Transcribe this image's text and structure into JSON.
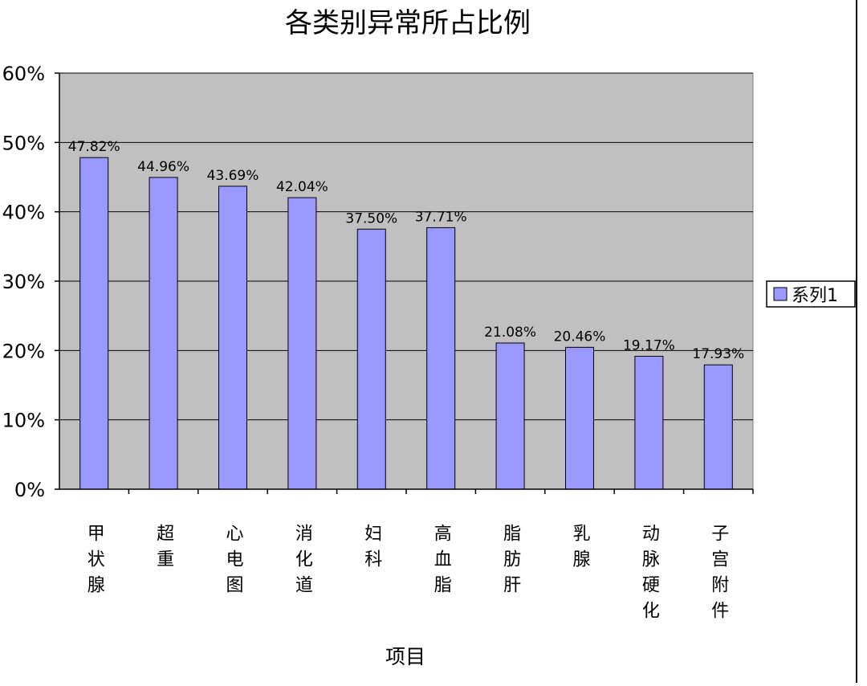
{
  "chart_data": {
    "type": "bar",
    "title": "各类别异常所占比例",
    "xlabel": "项目",
    "ylabel": "",
    "categories": [
      "甲状腺",
      "超重",
      "心电图",
      "消化道",
      "妇科",
      "高血脂",
      "脂肪肝",
      "乳腺",
      "动脉硬化",
      "子宫附件"
    ],
    "series": [
      {
        "name": "系列1",
        "values": [
          47.82,
          44.96,
          43.69,
          42.04,
          37.5,
          37.71,
          21.08,
          20.46,
          19.17,
          17.93
        ],
        "data_labels": [
          "47.82%",
          "44.96%",
          "43.69%",
          "42.04%",
          "37.50%",
          "37.71%",
          "21.08%",
          "20.46%",
          "19.17%",
          "17.93%"
        ]
      }
    ],
    "ylim": [
      0,
      60
    ],
    "yticks": [
      0,
      10,
      20,
      30,
      40,
      50,
      60
    ],
    "ytick_labels": [
      "0%",
      "10%",
      "20%",
      "30%",
      "40%",
      "50%",
      "60%"
    ],
    "grid": true,
    "legend_position": "right",
    "colors": {
      "bar": "#9999ff",
      "plot_background": "#c0c0c0",
      "gridline": "#000000"
    }
  }
}
